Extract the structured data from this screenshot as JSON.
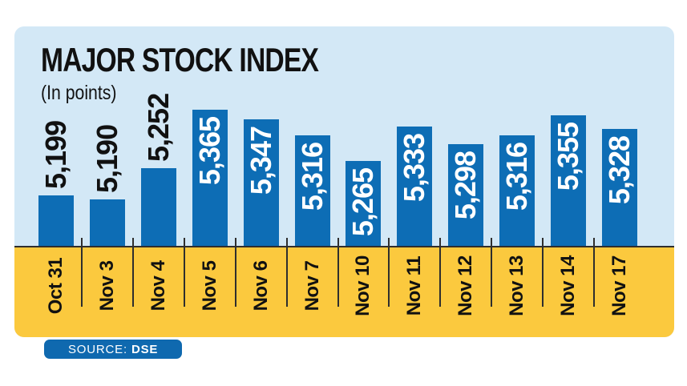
{
  "header": {
    "title": "MAJOR STOCK INDEX",
    "subtitle": "(In points)"
  },
  "source_badge": {
    "label": "SOURCE:",
    "value": "DSE"
  },
  "colors": {
    "page_bg": "#ffffff",
    "panel_bg": "#d3e8f6",
    "bar_blue": "#0d6db5",
    "band_yellow": "#fbc93e",
    "axis_dark": "#2e2e2e",
    "text_dark": "#111111",
    "label_on_bar": "#ffffff",
    "badge_bg": "#0f69af",
    "badge_text": "#ffffff"
  },
  "chart_data": {
    "type": "bar",
    "title": "MAJOR STOCK INDEX",
    "units_label": "(In points)",
    "categories": [
      "Oct 31",
      "Nov 3",
      "Nov 4",
      "Nov 5",
      "Nov 6",
      "Nov 7",
      "Nov 10",
      "Nov 11",
      "Nov 12",
      "Nov 13",
      "Nov 14",
      "Nov 17"
    ],
    "values": [
      5199,
      5190,
      5252,
      5365,
      5347,
      5316,
      5265,
      5333,
      5298,
      5316,
      5355,
      5328
    ],
    "value_labels": [
      "5,199",
      "5,190",
      "5,252",
      "5,365",
      "5,347",
      "5,316",
      "5,265",
      "5,333",
      "5,298",
      "5,316",
      "5,355",
      "5,328"
    ],
    "ylim": [
      5100,
      5365
    ],
    "grid": false,
    "legend": false,
    "bar_orientation": "vertical",
    "value_label_rotation": -90,
    "source": "DSE"
  }
}
